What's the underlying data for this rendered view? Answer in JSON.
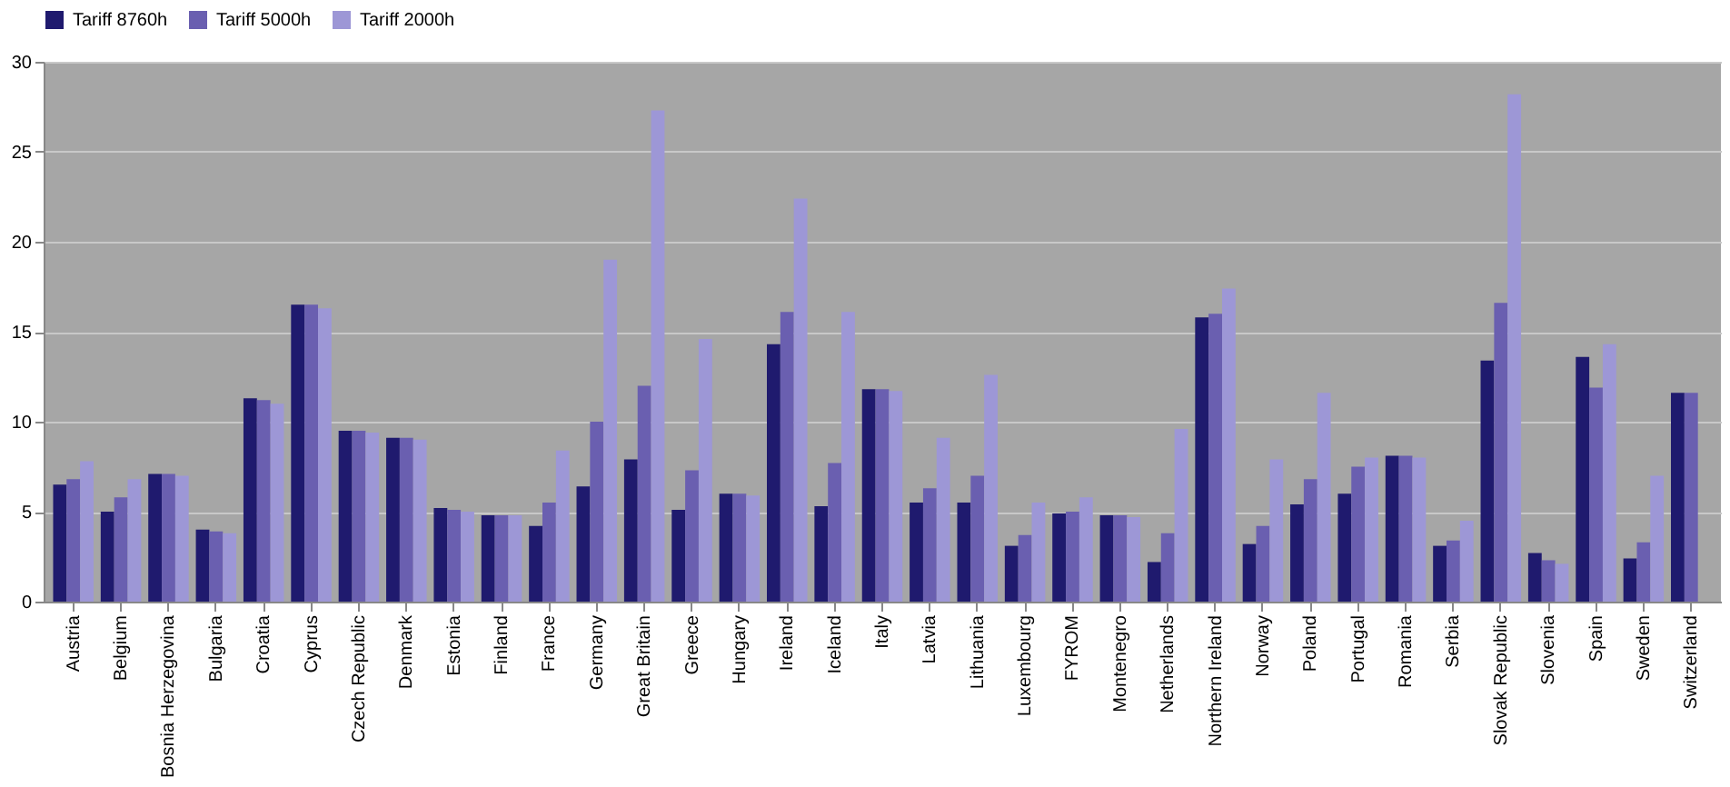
{
  "chart_data": {
    "type": "bar",
    "categories": [
      "Austria",
      "Belgium",
      "Bosnia Herzegovina",
      "Bulgaria",
      "Croatia",
      "Cyprus",
      "Czech Republic",
      "Denmark",
      "Estonia",
      "Finland",
      "France",
      "Germany",
      "Great Britain",
      "Greece",
      "Hungary",
      "Ireland",
      "Iceland",
      "Italy",
      "Latvia",
      "Lithuania",
      "Luxembourg",
      "FYROM",
      "Montenegro",
      "Netherlands",
      "Northern Ireland",
      "Norway",
      "Poland",
      "Portugal",
      "Romania",
      "Serbia",
      "Slovak Republic",
      "Slovenia",
      "Spain",
      "Sweden",
      "Switzerland"
    ],
    "series": [
      {
        "name": "Tariff 8760h",
        "color": "#1f1a6e",
        "values": [
          6.5,
          5.0,
          7.1,
          4.0,
          11.3,
          16.5,
          9.5,
          9.1,
          5.2,
          4.8,
          4.2,
          6.4,
          7.9,
          5.1,
          6.0,
          14.3,
          5.3,
          11.8,
          5.5,
          5.5,
          3.1,
          4.9,
          4.8,
          2.2,
          15.8,
          3.2,
          5.4,
          6.0,
          8.1,
          3.1,
          13.4,
          2.7,
          13.6,
          2.4,
          11.6
        ]
      },
      {
        "name": "Tariff 5000h",
        "color": "#6a5fb0",
        "values": [
          6.8,
          5.8,
          7.1,
          3.9,
          11.2,
          16.5,
          9.5,
          9.1,
          5.1,
          4.8,
          5.5,
          10.0,
          12.0,
          7.3,
          6.0,
          16.1,
          7.7,
          11.8,
          6.3,
          7.0,
          3.7,
          5.0,
          4.8,
          3.8,
          16.0,
          4.2,
          6.8,
          7.5,
          8.1,
          3.4,
          16.6,
          2.3,
          11.9,
          3.3,
          11.6
        ]
      },
      {
        "name": "Tariff 2000h",
        "color": "#9d97d6",
        "values": [
          7.8,
          6.8,
          7.0,
          3.8,
          11.0,
          16.3,
          9.4,
          9.0,
          5.0,
          4.8,
          8.4,
          19.0,
          27.3,
          14.6,
          5.9,
          22.4,
          16.1,
          11.7,
          9.1,
          12.6,
          5.5,
          5.8,
          4.7,
          9.6,
          17.4,
          7.9,
          11.6,
          8.0,
          8.0,
          4.5,
          28.2,
          2.1,
          14.3,
          7.0,
          null
        ]
      }
    ],
    "ylim": [
      0,
      30
    ],
    "yticks": [
      0,
      5,
      10,
      15,
      20,
      25,
      30
    ],
    "grid": "y",
    "legend": "top"
  }
}
